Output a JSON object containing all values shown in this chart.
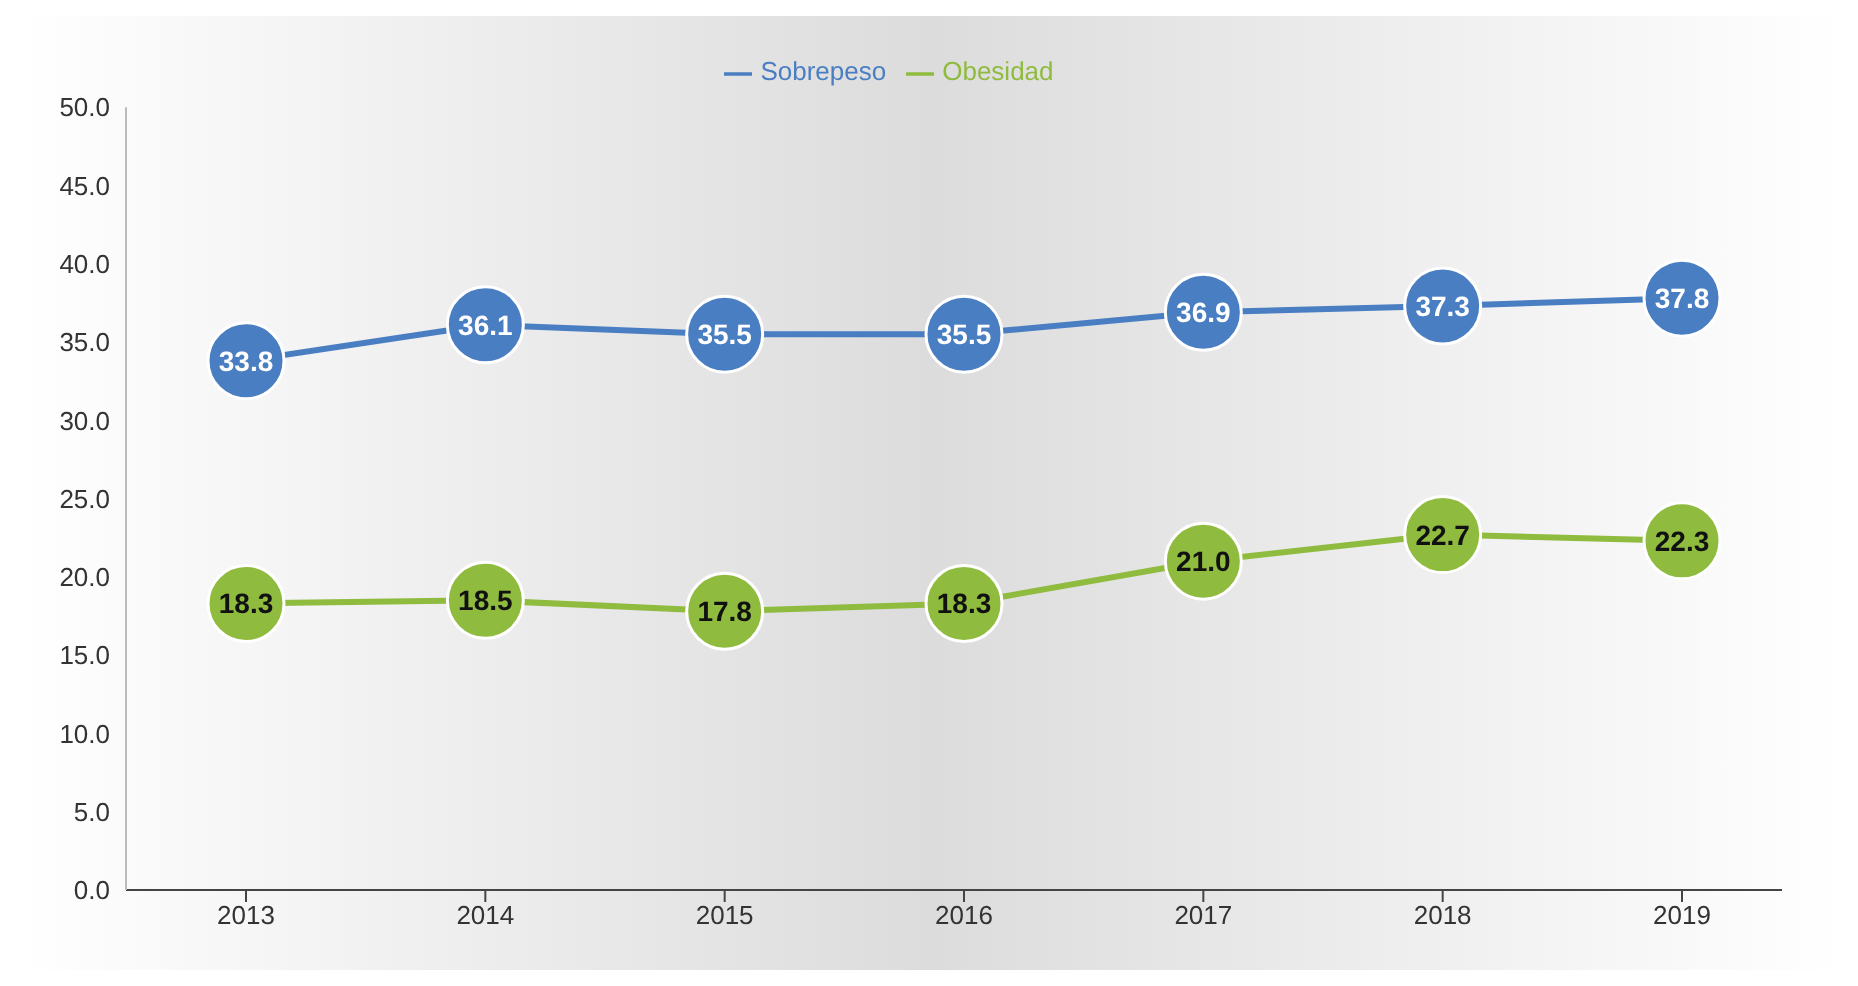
{
  "chart_data": {
    "type": "line",
    "categories": [
      "2013",
      "2014",
      "2015",
      "2016",
      "2017",
      "2018",
      "2019"
    ],
    "series": [
      {
        "name": "Sobrepeso",
        "color": "#4a7ec2",
        "values": [
          33.8,
          36.1,
          35.5,
          35.5,
          36.9,
          37.3,
          37.8
        ],
        "value_labels": [
          "33.8",
          "36.1",
          "35.5",
          "35.5",
          "36.9",
          "37.3",
          "37.8"
        ]
      },
      {
        "name": "Obesidad",
        "color": "#8fbb3f",
        "values": [
          18.3,
          18.5,
          17.8,
          18.3,
          21.0,
          22.7,
          22.3
        ],
        "value_labels": [
          "18.3",
          "18.5",
          "17.8",
          "18.3",
          "21.0",
          "22.7",
          "22.3"
        ]
      }
    ],
    "ylim": [
      0,
      50
    ],
    "yticks": [
      {
        "value": 0,
        "label": "0.0"
      },
      {
        "value": 5,
        "label": "5.0"
      },
      {
        "value": 10,
        "label": "10.0"
      },
      {
        "value": 15,
        "label": "15.0"
      },
      {
        "value": 20,
        "label": "20.0"
      },
      {
        "value": 25,
        "label": "25.0"
      },
      {
        "value": 30,
        "label": "30.0"
      },
      {
        "value": 35,
        "label": "35.0"
      },
      {
        "value": 40,
        "label": "40.0"
      },
      {
        "value": 45,
        "label": "45.0"
      },
      {
        "value": 50,
        "label": "50.0"
      }
    ],
    "legend": "top",
    "grid": false,
    "marker": "circle",
    "line_style": "solid"
  }
}
